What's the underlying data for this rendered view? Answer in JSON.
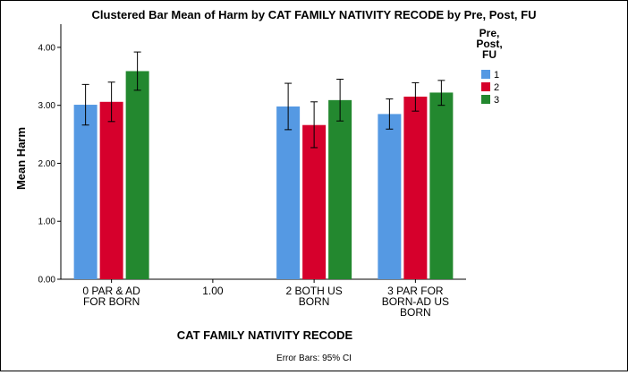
{
  "chart_data": {
    "type": "bar",
    "title": "Clustered Bar Mean of Harm by CAT FAMILY NATIVITY RECODE by Pre, Post, FU",
    "xlabel": "CAT FAMILY NATIVITY RECODE",
    "ylabel": "Mean Harm",
    "ylim": [
      0,
      4.4
    ],
    "yticks": [
      "0.00",
      "1.00",
      "2.00",
      "3.00",
      "4.00"
    ],
    "categories": [
      [
        "0 PAR & AD",
        "FOR BORN"
      ],
      [
        "1.00"
      ],
      [
        "2 BOTH US",
        "BORN"
      ],
      [
        "3 PAR FOR",
        "BORN-AD US",
        "BORN"
      ]
    ],
    "legend": {
      "title": [
        "Pre,",
        "Post,",
        "FU"
      ],
      "position": "right"
    },
    "series": [
      {
        "name": "1",
        "color": "#5599e3",
        "values": [
          3.01,
          null,
          2.98,
          2.85
        ],
        "ci_low": [
          2.66,
          null,
          2.58,
          2.59
        ],
        "ci_high": [
          3.36,
          null,
          3.38,
          3.11
        ]
      },
      {
        "name": "2",
        "color": "#d6002c",
        "values": [
          3.06,
          null,
          2.66,
          3.15
        ],
        "ci_low": [
          2.72,
          null,
          2.27,
          2.9
        ],
        "ci_high": [
          3.4,
          null,
          3.06,
          3.39
        ]
      },
      {
        "name": "3",
        "color": "#23882f",
        "values": [
          3.59,
          null,
          3.09,
          3.22
        ],
        "ci_low": [
          3.26,
          null,
          2.73,
          3.0
        ],
        "ci_high": [
          3.92,
          null,
          3.45,
          3.43
        ]
      }
    ],
    "grid": false,
    "footnote": "Error Bars: 95% CI"
  }
}
